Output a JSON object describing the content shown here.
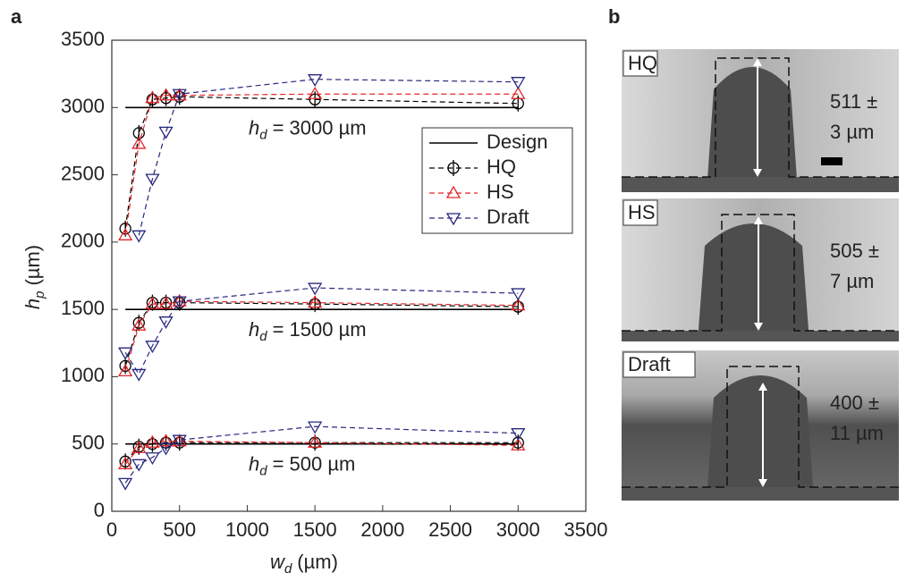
{
  "chart_data": {
    "type": "line",
    "panel_label": "a",
    "x": [
      100,
      200,
      300,
      400,
      500,
      1500,
      3000
    ],
    "series": [
      {
        "name": "Design",
        "color": "#000000",
        "marker": "none",
        "dash": false,
        "values": [
          [
            3000,
            3000,
            3000,
            3000,
            3000,
            3000,
            3000
          ],
          [
            1500,
            1500,
            1500,
            1500,
            1500,
            1500,
            1500
          ],
          [
            500,
            500,
            500,
            500,
            500,
            500,
            500
          ]
        ]
      },
      {
        "name": "HQ",
        "color": "#000000",
        "marker": "circle",
        "dash": true,
        "values": [
          [
            2100,
            2810,
            3060,
            3070,
            3080,
            3060,
            3030
          ],
          [
            1080,
            1400,
            1550,
            1550,
            1550,
            1540,
            1520
          ],
          [
            370,
            480,
            500,
            510,
            510,
            510,
            510
          ]
        ]
      },
      {
        "name": "HS",
        "color": "#e3262a",
        "marker": "triangle-up",
        "dash": true,
        "values": [
          [
            2050,
            2730,
            3070,
            3090,
            3090,
            3100,
            3100
          ],
          [
            1040,
            1380,
            1540,
            1540,
            1560,
            1550,
            1530
          ],
          [
            350,
            470,
            510,
            520,
            520,
            510,
            490
          ]
        ]
      },
      {
        "name": "Draft",
        "color": "#27287f",
        "marker": "triangle-down",
        "dash": true,
        "values": [
          [
            null,
            2050,
            2470,
            2820,
            3100,
            3210,
            3190
          ],
          [
            1180,
            1020,
            1230,
            1410,
            1560,
            1660,
            1620
          ],
          [
            210,
            350,
            400,
            470,
            530,
            630,
            580
          ]
        ]
      }
    ],
    "annotations": [
      {
        "var": "h",
        "sub": "d",
        "text": "= 3000 µm"
      },
      {
        "var": "h",
        "sub": "d",
        "text": "= 1500 µm"
      },
      {
        "var": "h",
        "sub": "d",
        "text": "= 500 µm"
      }
    ],
    "xlabel": {
      "var": "w",
      "sub": "d",
      "text": "(µm)"
    },
    "ylabel": {
      "var": "h",
      "sub": "p",
      "text": "(µm)"
    },
    "xlim": [
      0,
      3500
    ],
    "ylim": [
      0,
      3500
    ],
    "xticks": [
      0,
      500,
      1000,
      1500,
      2000,
      2500,
      3000,
      3500
    ],
    "yticks": [
      0,
      500,
      1000,
      1500,
      2000,
      2500,
      3000,
      3500
    ]
  },
  "panel_b": {
    "label": "b",
    "images": [
      {
        "label": "HQ",
        "lines": [
          "511 ±",
          "3 µm"
        ]
      },
      {
        "label": "HS",
        "lines": [
          "505 ±",
          "7 µm"
        ]
      },
      {
        "label": "Draft",
        "lines": [
          "400 ±",
          "11 µm"
        ]
      }
    ]
  }
}
